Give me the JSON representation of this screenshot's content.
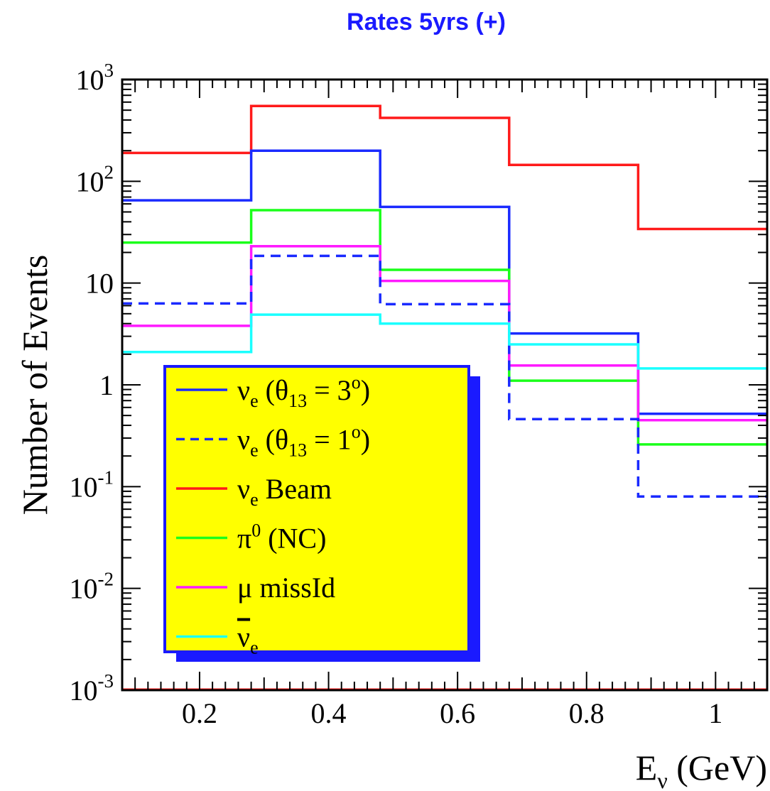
{
  "chart_data": {
    "type": "step",
    "title": "Rates 5yrs (+)",
    "title_color": "#1a1aff",
    "ylabel": "Number of Events",
    "xlabel": {
      "main": "E",
      "sub": "ν",
      "unit": " (GeV)"
    },
    "x_scale": "linear",
    "y_scale": "log",
    "xlim": [
      0.08,
      1.08
    ],
    "ylim": [
      0.001,
      1000
    ],
    "x_ticks": [
      "0.2",
      "0.4",
      "0.6",
      "0.8",
      "1"
    ],
    "x_tick_values": [
      0.2,
      0.4,
      0.6,
      0.8,
      1.0
    ],
    "y_ticks": [
      {
        "value": 0.001,
        "base": "10",
        "exp": "-3"
      },
      {
        "value": 0.01,
        "base": "10",
        "exp": "-2"
      },
      {
        "value": 0.1,
        "base": "10",
        "exp": "-1"
      },
      {
        "value": 1,
        "base": "1",
        "exp": ""
      },
      {
        "value": 10,
        "base": "10",
        "exp": ""
      },
      {
        "value": 100,
        "base": "10",
        "exp": "2"
      },
      {
        "value": 1000,
        "base": "10",
        "exp": "3"
      }
    ],
    "bin_edges": [
      0.08,
      0.28,
      0.48,
      0.68,
      0.88,
      1.08
    ],
    "series": [
      {
        "key": "nue_beam",
        "color": "#ff1a1a",
        "dash": false,
        "values": [
          190,
          550,
          420,
          145,
          34
        ]
      },
      {
        "key": "nue_t3",
        "color": "#1a2aff",
        "dash": false,
        "values": [
          65,
          200,
          56,
          3.2,
          0.52
        ]
      },
      {
        "key": "pi0",
        "color": "#1aff1a",
        "dash": false,
        "values": [
          25,
          52,
          13.5,
          1.1,
          0.26
        ]
      },
      {
        "key": "mu",
        "color": "#ff1aff",
        "dash": false,
        "values": [
          3.8,
          23,
          10.5,
          1.55,
          0.45
        ]
      },
      {
        "key": "nue_t1",
        "color": "#1a2aff",
        "dash": true,
        "values": [
          6.3,
          18.5,
          6.2,
          0.46,
          0.08
        ]
      },
      {
        "key": "antinue",
        "color": "#1affff",
        "dash": false,
        "values": [
          2.1,
          4.9,
          4.0,
          2.5,
          1.45
        ]
      }
    ],
    "legend": {
      "placement": "lower-left",
      "background": "#ffff00",
      "border": "#1a1aff",
      "items": [
        {
          "key": "nue_t3",
          "nu": "ν",
          "sub": "e",
          "rest": " (θ",
          "rest_sub": "13",
          "rest2": " = 3",
          "sup": "o",
          "close": ")"
        },
        {
          "key": "nue_t1",
          "nu": "ν",
          "sub": "e",
          "rest": " (θ",
          "rest_sub": "13",
          "rest2": " = 1",
          "sup": "o",
          "close": ")"
        },
        {
          "key": "nue_beam",
          "nu": "ν",
          "sub": "e",
          "rest": " Beam"
        },
        {
          "key": "pi0",
          "nu": "π",
          "sup": "0",
          "rest": " (NC)"
        },
        {
          "key": "mu",
          "nu": "μ",
          "rest": " missId"
        },
        {
          "key": "antinue",
          "nu": "ν",
          "sub": "e",
          "overline": true
        }
      ]
    }
  }
}
